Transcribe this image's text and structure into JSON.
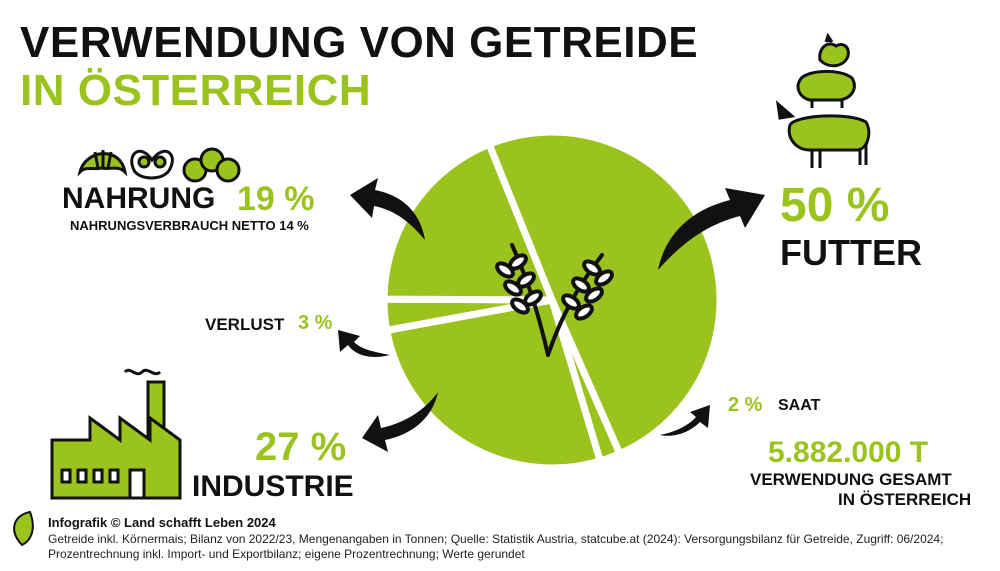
{
  "title": {
    "line1": "VERWENDUNG VON GETREIDE",
    "line2": "IN ÖSTERREICH"
  },
  "colors": {
    "accent": "#9bc31e",
    "dark": "#111111"
  },
  "labels": {
    "nahrung": {
      "name": "NAHRUNG",
      "pct": "19 %",
      "sub": "NAHRUNGSVERBRAUCH NETTO 14 %"
    },
    "verlust": {
      "name": "VERLUST",
      "pct": "3 %"
    },
    "industrie": {
      "name": "INDUSTRIE",
      "pct": "27 %"
    },
    "futter": {
      "name": "FUTTER",
      "pct": "50 %"
    },
    "saat": {
      "name": "SAAT",
      "pct": "2 %"
    },
    "total": {
      "value": "5.882.000 T",
      "line1": "VERWENDUNG GESAMT",
      "line2": "IN ÖSTERREICH"
    }
  },
  "icons": [
    "croissant-icon",
    "pretzel-icon",
    "bread-rolls-icon",
    "chicken-icon",
    "pig-icon",
    "cow-icon",
    "factory-icon",
    "wheat-icon",
    "leaf-logo-icon"
  ],
  "chart_data": {
    "type": "pie",
    "unit": "%",
    "categories": [
      "FUTTER",
      "SAAT",
      "INDUSTRIE",
      "VERLUST",
      "NAHRUNG"
    ],
    "values": [
      50,
      2,
      27,
      3,
      19
    ]
  },
  "footer": {
    "title": "Infografik © Land schafft Leben 2024",
    "text": "Getreide inkl. Körnermais; Bilanz von 2022/23, Mengenangaben in Tonnen; Quelle: Statistik Austria, statcube.at (2024): Versorgungsbilanz für Getreide, Zugriff: 06/2024; Prozentrechnung inkl. Import- und Exportbilanz; eigene Prozentrechnung; Werte gerundet"
  }
}
